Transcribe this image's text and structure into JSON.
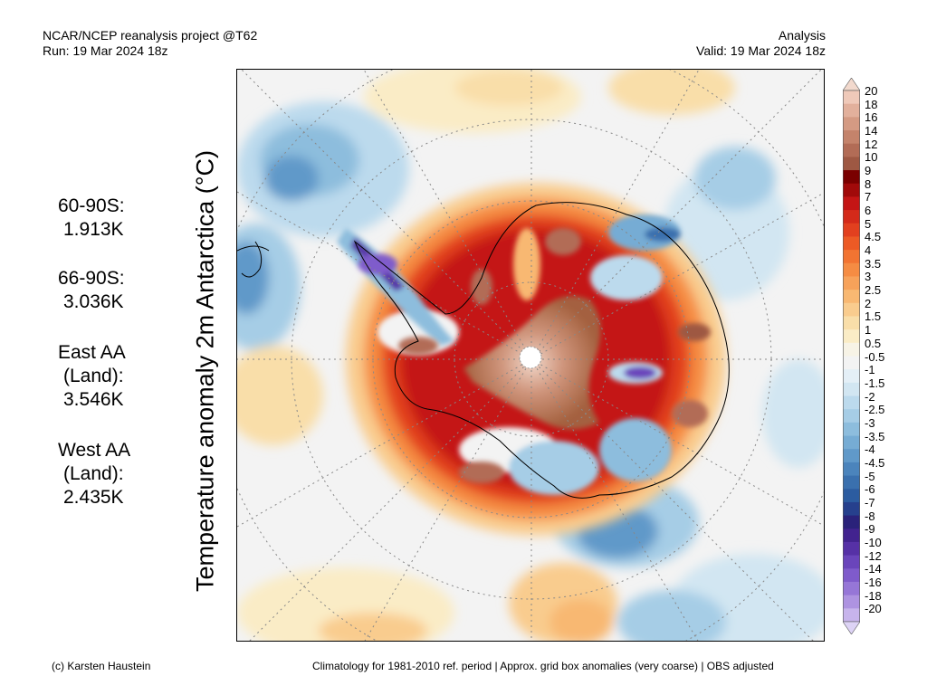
{
  "header": {
    "left_line1": "NCAR/NCEP reanalysis project @T62",
    "left_line2": "Run: 19 Mar 2024 18z",
    "right_line1": "Analysis",
    "right_line2": "Valid: 19 Mar 2024 18z"
  },
  "y_axis_label": "Temperature anomaly 2m Antarctica (°C)",
  "stats": [
    {
      "line1": "60-90S:",
      "line2": "1.913K"
    },
    {
      "line1": "66-90S:",
      "line2": "3.036K"
    },
    {
      "line1": "East AA",
      "line2": "(Land):",
      "line3": "3.546K"
    },
    {
      "line1": "West AA",
      "line2": "(Land):",
      "line3": "2.435K"
    }
  ],
  "colorbar": {
    "labels": [
      "20",
      "18",
      "16",
      "14",
      "12",
      "10",
      "9",
      "8",
      "7",
      "6",
      "5",
      "4.5",
      "4",
      "3.5",
      "3",
      "2.5",
      "2",
      "1.5",
      "1",
      "0.5",
      "-0.5",
      "-1",
      "-1.5",
      "-2",
      "-2.5",
      "-3",
      "-3.5",
      "-4",
      "-4.5",
      "-5",
      "-6",
      "-7",
      "-8",
      "-9",
      "-10",
      "-12",
      "-14",
      "-16",
      "-18",
      "-20"
    ],
    "colors": [
      "#efc9b9",
      "#e2b09c",
      "#d49a83",
      "#c4836b",
      "#b26c56",
      "#9e5843",
      "#7a0000",
      "#a10a0a",
      "#c41515",
      "#d42a1a",
      "#e2401f",
      "#ec5a25",
      "#f27432",
      "#f58c43",
      "#f7a25a",
      "#f8b872",
      "#f9cc8e",
      "#f9dea9",
      "#faecc6",
      "#f7f3e6",
      "#f3f3f3",
      "#e4eff7",
      "#d2e6f2",
      "#bcdaed",
      "#a6cde6",
      "#8dbddd",
      "#76acd4",
      "#6099c9",
      "#4b84bc",
      "#3a70ae",
      "#2c5ca0",
      "#26408d",
      "#2a227a",
      "#42238f",
      "#5631a6",
      "#6a45bb",
      "#7f5bcb",
      "#9676d7",
      "#ae93e1",
      "#c7b4ec"
    ],
    "top_color": "#f2d9cd",
    "bottom_color": "#ddd3f5"
  },
  "stats_footer": {
    "left": "(c) Karsten Haustein",
    "right": "Climatology for 1981-2010 ref. period | Approx. grid box anomalies (very coarse) | OBS adjusted"
  }
}
